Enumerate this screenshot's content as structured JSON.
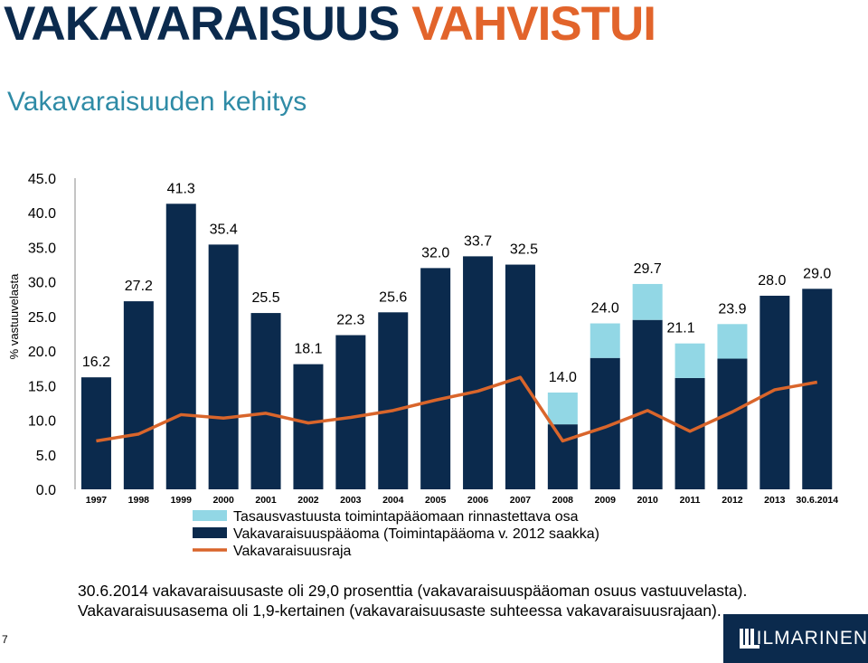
{
  "header": {
    "title_part1": "VAKAVARAISUUS",
    "title_part2": "VAHVISTUI",
    "subtitle": "Vakavaraisuuden kehitys"
  },
  "colors": {
    "title_dark": "#0b2a4d",
    "title_accent": "#e2642b",
    "subtitle": "#2f8ba6",
    "bar_dark": "#0b2a4d",
    "bar_light": "#92d7e5",
    "line": "#d9652b"
  },
  "chart_data": {
    "type": "bar",
    "ylabel": "% vastuuvelasta",
    "ylim": [
      0,
      45
    ],
    "yticks": [
      "0.0",
      "5.0",
      "10.0",
      "15.0",
      "20.0",
      "25.0",
      "30.0",
      "35.0",
      "40.0",
      "45.0"
    ],
    "categories": [
      "1997",
      "1998",
      "1999",
      "2000",
      "2001",
      "2002",
      "2003",
      "2004",
      "2005",
      "2006",
      "2007",
      "2008",
      "2009",
      "2010",
      "2011",
      "2012",
      "2013",
      "30.6.2014"
    ],
    "totals": [
      16.2,
      27.2,
      41.3,
      35.4,
      25.5,
      18.1,
      22.3,
      25.6,
      32.0,
      33.7,
      32.5,
      14.0,
      24.0,
      29.7,
      21.1,
      23.9,
      28.0,
      29.0
    ],
    "total_labels": [
      "16.2",
      "27.2",
      "41.3",
      "35.4",
      "25.5",
      "18.1",
      "22.3",
      "25.6",
      "32.0",
      "33.7",
      "32.5",
      "14.0",
      "24.0",
      "29.7",
      "21.1",
      "23.9",
      "28.0",
      "29.0"
    ],
    "series": [
      {
        "name": "Tasausvastuusta toimintapääomaan rinnastettava osa",
        "type": "bar",
        "values": [
          0,
          0,
          0,
          0,
          0,
          0,
          0,
          0,
          0,
          0,
          0,
          4.6,
          5.0,
          5.2,
          5.0,
          5.0,
          0,
          0
        ]
      },
      {
        "name": "Vakavaraisuuspääoma (Toimintapääoma v. 2012 saakka)",
        "type": "bar",
        "values": [
          16.2,
          27.2,
          41.3,
          35.4,
          25.5,
          18.1,
          22.3,
          25.6,
          32.0,
          33.7,
          32.5,
          9.4,
          19.0,
          24.5,
          16.1,
          18.9,
          28.0,
          29.0
        ]
      },
      {
        "name": "Vakavaraisuusraja",
        "type": "line",
        "values": [
          7.0,
          8.0,
          10.8,
          10.3,
          11.0,
          9.6,
          10.4,
          11.4,
          12.9,
          14.2,
          16.2,
          7.0,
          9.0,
          11.4,
          8.4,
          11.2,
          14.4,
          15.5
        ]
      }
    ]
  },
  "footer": {
    "note_line1": "30.6.2014 vakavaraisuusaste oli  29,0 prosenttia (vakavaraisuuspääoman osuus vastuuvelasta).",
    "note_line2": "Vakavaraisuusasema oli 1,9-kertainen (vakavaraisuusaste suhteessa vakavaraisuusrajaan).",
    "page_number": "7",
    "logo_text": "ILMARINEN"
  }
}
